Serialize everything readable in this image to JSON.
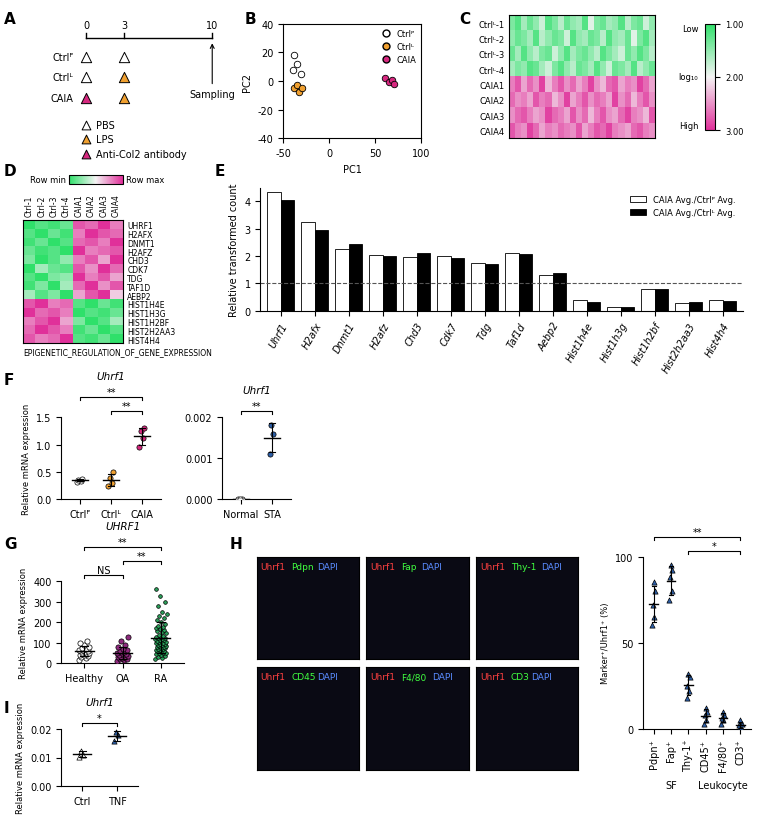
{
  "chart_data": [
    {
      "panel": "A",
      "type": "timeline",
      "days": [
        0,
        3,
        10
      ],
      "treatment_days": [
        0,
        3
      ],
      "groups": [
        {
          "name": "Ctrlᴾ",
          "treatments": [
            "PBS",
            "PBS"
          ]
        },
        {
          "name": "Ctrlᴸ",
          "treatments": [
            "PBS",
            "LPS"
          ]
        },
        {
          "name": "CAIA",
          "treatments": [
            "Anti-Col2 antibody",
            "LPS"
          ]
        }
      ],
      "sampling": {
        "day": 10,
        "label": "Sampling"
      },
      "treatment_colors": [
        {
          "name": "PBS",
          "color": "#ffffff"
        },
        {
          "name": "LPS",
          "color": "#f0a030"
        },
        {
          "name": "Anti-Col2 antibody",
          "color": "#d6287f"
        }
      ]
    },
    {
      "panel": "B",
      "type": "scatter",
      "x_label": "PC1",
      "y_label": "PC2",
      "xlim": [
        -50,
        100
      ],
      "xticks": [
        -50,
        0,
        50,
        100
      ],
      "ylim": [
        -40,
        40
      ],
      "yticks": [
        -40,
        -20,
        0,
        20,
        40
      ],
      "legend": "upper right",
      "series": [
        {
          "name": "Ctrlᴾ",
          "color": "#ffffff",
          "x": [
            -38,
            -35,
            -40,
            -31
          ],
          "y": [
            18,
            12,
            8,
            5
          ]
        },
        {
          "name": "Ctrlᴸ",
          "color": "#f0a030",
          "x": [
            -38,
            -35,
            -33,
            -30
          ],
          "y": [
            -5,
            -3,
            -8,
            -5
          ]
        },
        {
          "name": "CAIA",
          "color": "#d6287f",
          "x": [
            60,
            65,
            68,
            70
          ],
          "y": [
            2,
            -1,
            1,
            -2
          ]
        }
      ]
    },
    {
      "panel": "C",
      "type": "heatmap",
      "rows": [
        "Ctrlᴸ-1",
        "Ctrlᴸ-2",
        "Ctrlᴸ-3",
        "Ctrlᴸ-4",
        "CAIA1",
        "CAIA2",
        "CAIA3",
        "CAIA4"
      ],
      "cells": [
        [
          1.4,
          1.2,
          1.6,
          1.3,
          1.5,
          1.8,
          1.2,
          1.4,
          1.7,
          1.3,
          1.5,
          1.6,
          1.2,
          1.9,
          1.4,
          1.3,
          1.6,
          1.5,
          1.2,
          1.7,
          1.4,
          1.3,
          1.8,
          1.5
        ],
        [
          1.5,
          1.3,
          1.4,
          1.6,
          1.2,
          1.7,
          1.5,
          1.3,
          1.4,
          1.8,
          1.2,
          1.5,
          1.6,
          1.3,
          1.4,
          1.7,
          1.2,
          1.5,
          1.6,
          1.3,
          1.9,
          1.4,
          1.2,
          1.6
        ],
        [
          1.3,
          1.6,
          1.2,
          1.5,
          1.7,
          1.4,
          1.3,
          1.8,
          1.5,
          1.2,
          1.6,
          1.4,
          1.3,
          1.5,
          1.7,
          1.2,
          1.4,
          1.6,
          1.8,
          1.3,
          1.5,
          1.2,
          1.4,
          1.7
        ],
        [
          1.6,
          1.4,
          1.5,
          1.2,
          1.3,
          1.6,
          1.8,
          1.4,
          1.2,
          1.5,
          1.7,
          1.3,
          1.4,
          1.6,
          1.2,
          1.5,
          1.8,
          1.3,
          1.4,
          1.6,
          1.2,
          1.7,
          1.5,
          1.3
        ],
        [
          2.6,
          2.8,
          2.4,
          2.7,
          2.5,
          2.9,
          2.3,
          2.6,
          2.8,
          2.5,
          2.7,
          2.4,
          2.6,
          2.9,
          2.5,
          2.3,
          2.7,
          2.8,
          2.4,
          2.6,
          2.5,
          2.9,
          2.7,
          2.4
        ],
        [
          2.7,
          2.5,
          2.6,
          2.4,
          2.8,
          2.6,
          2.7,
          2.3,
          2.5,
          2.9,
          2.4,
          2.6,
          2.8,
          2.5,
          2.7,
          2.6,
          2.4,
          2.9,
          2.5,
          2.7,
          2.3,
          2.6,
          2.8,
          2.5
        ],
        [
          2.5,
          2.7,
          2.8,
          2.6,
          2.4,
          2.5,
          2.9,
          2.7,
          2.6,
          2.4,
          2.8,
          2.5,
          2.7,
          2.3,
          2.6,
          2.8,
          2.5,
          2.4,
          2.7,
          2.9,
          2.6,
          2.5,
          2.3,
          2.8
        ],
        [
          2.8,
          2.6,
          2.5,
          2.9,
          2.7,
          2.4,
          2.6,
          2.5,
          2.7,
          2.6,
          2.5,
          2.8,
          2.4,
          2.6,
          2.8,
          2.7,
          2.9,
          2.6,
          2.5,
          2.4,
          2.7,
          2.8,
          2.6,
          2.5
        ]
      ],
      "colorbar": {
        "range": [
          1,
          3
        ],
        "ticks": [
          {
            "value": 1,
            "label": "1.00"
          },
          {
            "value": 2,
            "label": "2.00"
          },
          {
            "value": 3,
            "label": "3.00"
          }
        ],
        "label": "log₁₀",
        "low_label": "Low",
        "high_label": "High"
      }
    },
    {
      "panel": "D",
      "type": "heatmap",
      "columns": [
        "Ctrl-1",
        "Ctrl-2",
        "Ctrl-3",
        "Ctrl-4",
        "CAIA1",
        "CAIA2",
        "CAIA3",
        "CAIA4"
      ],
      "rows": [
        "UHRF1",
        "H2AFX",
        "DNMT1",
        "H2AFZ",
        "CHD3",
        "CDK7",
        "TDG",
        "TAF1D",
        "AEBP2",
        "HIST1H4E",
        "HIST1H3G",
        "HIST1H2BF",
        "HIST2H2AA3",
        "HIST4H4"
      ],
      "cells": [
        [
          0.0,
          0.1,
          0.05,
          0.15,
          0.9,
          0.85,
          1.0,
          0.8
        ],
        [
          0.1,
          0.0,
          0.15,
          0.05,
          0.8,
          1.0,
          0.9,
          0.85
        ],
        [
          0.05,
          0.15,
          0.0,
          0.1,
          0.85,
          0.9,
          0.8,
          1.0
        ],
        [
          0.15,
          0.05,
          0.1,
          0.0,
          1.0,
          0.8,
          0.85,
          0.9
        ],
        [
          0.2,
          0.0,
          0.1,
          0.25,
          0.8,
          0.9,
          0.7,
          1.0
        ],
        [
          0.0,
          0.3,
          0.15,
          0.1,
          0.9,
          0.75,
          1.0,
          0.85
        ],
        [
          0.1,
          0.0,
          0.2,
          0.25,
          1.0,
          0.8,
          0.9,
          0.7
        ],
        [
          0.05,
          0.2,
          0.0,
          0.3,
          0.85,
          1.0,
          0.75,
          0.9
        ],
        [
          0.3,
          0.1,
          0.2,
          0.0,
          0.7,
          0.9,
          1.0,
          0.6
        ],
        [
          0.9,
          1.0,
          0.8,
          0.85,
          0.1,
          0.0,
          0.15,
          0.05
        ],
        [
          1.0,
          0.85,
          0.9,
          0.8,
          0.0,
          0.1,
          0.05,
          0.15
        ],
        [
          0.8,
          0.9,
          1.0,
          0.7,
          0.2,
          0.0,
          0.1,
          0.3
        ],
        [
          0.85,
          1.0,
          0.9,
          0.8,
          0.05,
          0.15,
          0.0,
          0.1
        ],
        [
          0.9,
          0.8,
          0.85,
          1.0,
          0.1,
          0.05,
          0.15,
          0.0
        ]
      ],
      "colorbar": {
        "range": [
          0,
          1
        ],
        "low_label": "Row min",
        "high_label": "Row max"
      },
      "caption": "EPIGENETIC_REGULATION_OF_GENE_EXPRESSION"
    },
    {
      "panel": "E",
      "type": "bar",
      "y_label": "Relative transformed count",
      "categories": [
        "Uhrf1",
        "H2afx",
        "Dnmt1",
        "H2afz",
        "Chd3",
        "Cdk7",
        "Tdg",
        "Taf1d",
        "Aebp2",
        "Hist1h4e",
        "Hist1h3g",
        "Hist1h2bf",
        "Hist2h2aa3",
        "Hist4h4"
      ],
      "series": [
        {
          "name": "CAIA Avg./Ctrlᴾ Avg.",
          "color": "#ffffff",
          "values": [
            4.35,
            3.25,
            2.25,
            2.05,
            1.95,
            2.0,
            1.75,
            2.1,
            1.3,
            0.38,
            0.12,
            0.8,
            0.27,
            0.38
          ]
        },
        {
          "name": "CAIA Avg./Ctrlᴸ Avg.",
          "color": "#000000",
          "values": [
            4.05,
            2.95,
            2.45,
            1.98,
            2.12,
            1.92,
            1.7,
            2.08,
            1.38,
            0.32,
            0.12,
            0.78,
            0.32,
            0.35
          ]
        }
      ],
      "ylim": [
        0,
        4.5
      ],
      "yticks": [
        0,
        1,
        2,
        3,
        4
      ],
      "reference_line": 1,
      "legend": "upper right"
    },
    {
      "panel": "F",
      "type": "dot",
      "title": "Uhrf1",
      "y_label": "Relative mRNA expression",
      "categories": [
        "Ctrlᴾ",
        "Ctrlᴸ",
        "CAIA"
      ],
      "values": [
        [
          0.32,
          0.34,
          0.36,
          0.37
        ],
        [
          0.25,
          0.3,
          0.38,
          0.5
        ],
        [
          0.95,
          1.12,
          1.25,
          1.3
        ]
      ],
      "colors": [
        "#ffffff",
        "#f0a030",
        "#d6287f"
      ],
      "marker": "circle",
      "ylim": [
        0,
        1.5
      ],
      "yticks": [
        {
          "value": 0,
          "label": "0.0"
        },
        0.5,
        {
          "value": 1,
          "label": "1.0"
        },
        1.5
      ],
      "comparisons": [
        {
          "groups": [
            1,
            2
          ],
          "label": "**"
        },
        {
          "groups": [
            0,
            2
          ],
          "label": "**"
        }
      ]
    },
    {
      "type": "dot",
      "title": "Uhrf1",
      "categories": [
        "Normal",
        "STA"
      ],
      "values": [
        [
          0,
          0,
          0
        ],
        [
          0.0011,
          0.0016,
          0.0018
        ]
      ],
      "colors": [
        "#ffffff",
        "#2d5fa8"
      ],
      "marker": "circle",
      "ylim": [
        0,
        0.002
      ],
      "yticks": [
        {
          "value": 0,
          "label": "0.000"
        },
        0.001,
        0.002
      ],
      "comparisons": [
        {
          "groups": [
            0,
            1
          ],
          "label": "**"
        }
      ]
    },
    {
      "panel": "G",
      "type": "dot",
      "title": "UHRF1",
      "y_label": "Relative mRNA expression",
      "categories": [
        "Healthy",
        "OA",
        "RA"
      ],
      "values": [
        [
          15,
          25,
          30,
          35,
          40,
          42,
          45,
          48,
          50,
          55,
          58,
          60,
          62,
          65,
          70,
          75,
          80,
          90,
          100,
          110
        ],
        [
          10,
          15,
          20,
          22,
          25,
          28,
          30,
          32,
          35,
          38,
          40,
          45,
          48,
          50,
          55,
          60,
          65,
          70,
          80,
          90,
          110,
          130
        ],
        [
          20,
          25,
          30,
          35,
          40,
          45,
          48,
          50,
          52,
          55,
          58,
          60,
          62,
          65,
          68,
          70,
          72,
          75,
          78,
          80,
          82,
          85,
          88,
          90,
          92,
          95,
          98,
          100,
          102,
          105,
          108,
          110,
          112,
          115,
          118,
          120,
          122,
          125,
          128,
          130,
          135,
          140,
          145,
          150,
          155,
          160,
          165,
          170,
          175,
          180,
          190,
          200,
          210,
          220,
          230,
          240,
          250,
          280,
          300,
          330,
          360
        ]
      ],
      "colors": [
        "#ffffff",
        "#8e2a7e",
        "#2aa05a"
      ],
      "marker": "circle",
      "ylim": [
        0,
        400
      ],
      "yticks": [
        0,
        100,
        200,
        300,
        400
      ],
      "comparisons": [
        {
          "groups": [
            0,
            1
          ],
          "label": "NS"
        },
        {
          "groups": [
            1,
            2
          ],
          "label": "**"
        },
        {
          "groups": [
            0,
            2
          ],
          "label": "**"
        }
      ]
    },
    {
      "panel": "H",
      "type": "image",
      "images": [
        [
          {
            "name": "Uhrf1",
            "color": "#ff4040"
          },
          {
            "name": "Pdpn",
            "color": "#40ff40"
          },
          {
            "name": "DAPI",
            "color": "#5a8cff"
          }
        ],
        [
          {
            "name": "Uhrf1",
            "color": "#ff4040"
          },
          {
            "name": "Fap",
            "color": "#40ff40"
          },
          {
            "name": "DAPI",
            "color": "#5a8cff"
          }
        ],
        [
          {
            "name": "Uhrf1",
            "color": "#ff4040"
          },
          {
            "name": "Thy-1",
            "color": "#40ff40"
          },
          {
            "name": "DAPI",
            "color": "#5a8cff"
          }
        ],
        [
          {
            "name": "Uhrf1",
            "color": "#ff4040"
          },
          {
            "name": "CD45",
            "color": "#40ff40"
          },
          {
            "name": "DAPI",
            "color": "#5a8cff"
          }
        ],
        [
          {
            "name": "Uhrf1",
            "color": "#ff4040"
          },
          {
            "name": "F4/80",
            "color": "#40ff40"
          },
          {
            "name": "DAPI",
            "color": "#5a8cff"
          }
        ],
        [
          {
            "name": "Uhrf1",
            "color": "#ff4040"
          },
          {
            "name": "CD3",
            "color": "#40ff40"
          },
          {
            "name": "DAPI",
            "color": "#5a8cff"
          }
        ]
      ]
    },
    {
      "type": "dot",
      "y_label": "Marker⁺/Uhrf1⁺ (%)",
      "categories": [
        "Pdpn⁺",
        "Fap⁺",
        "Thy-1⁺",
        "CD45⁺",
        "F4/80⁺",
        "CD3⁺"
      ],
      "values": [
        [
          60,
          65,
          72,
          80,
          85
        ],
        [
          75,
          80,
          88,
          92,
          95
        ],
        [
          18,
          22,
          25,
          30,
          32
        ],
        [
          3,
          5,
          8,
          10,
          12
        ],
        [
          3,
          5,
          6,
          8,
          10
        ],
        [
          0,
          1,
          2,
          3,
          5
        ]
      ],
      "colors": [
        "#2d5fa8",
        "#2d5fa8",
        "#2d5fa8",
        "#2d5fa8",
        "#2d5fa8",
        "#2d5fa8"
      ],
      "marker": "triangle",
      "ylim": [
        0,
        100
      ],
      "yticks": [
        0,
        50,
        100
      ],
      "groups": [
        {
          "name": "SF",
          "categories": [
            0,
            1,
            2
          ]
        },
        {
          "name": "Leukocyte",
          "categories": [
            3,
            4,
            5
          ]
        }
      ],
      "comparisons": [
        {
          "groups": [
            2,
            5
          ],
          "label": "*"
        },
        {
          "groups": [
            0,
            5
          ],
          "label": "**"
        }
      ]
    },
    {
      "panel": "I",
      "type": "dot",
      "title": "Uhrf1",
      "y_label": "Relative mRNA expression",
      "categories": [
        "Ctrl",
        "TNF"
      ],
      "values": [
        [
          0.0102,
          0.0108,
          0.0122
        ],
        [
          0.0158,
          0.0178,
          0.019
        ]
      ],
      "colors": [
        "#ffffff",
        "#2d5fa8"
      ],
      "marker": "triangle",
      "ylim": [
        0,
        0.02
      ],
      "yticks": [
        {
          "value": 0,
          "label": "0.00"
        },
        0.01,
        0.02
      ],
      "comparisons": [
        {
          "groups": [
            0,
            1
          ],
          "label": "*"
        }
      ]
    }
  ]
}
